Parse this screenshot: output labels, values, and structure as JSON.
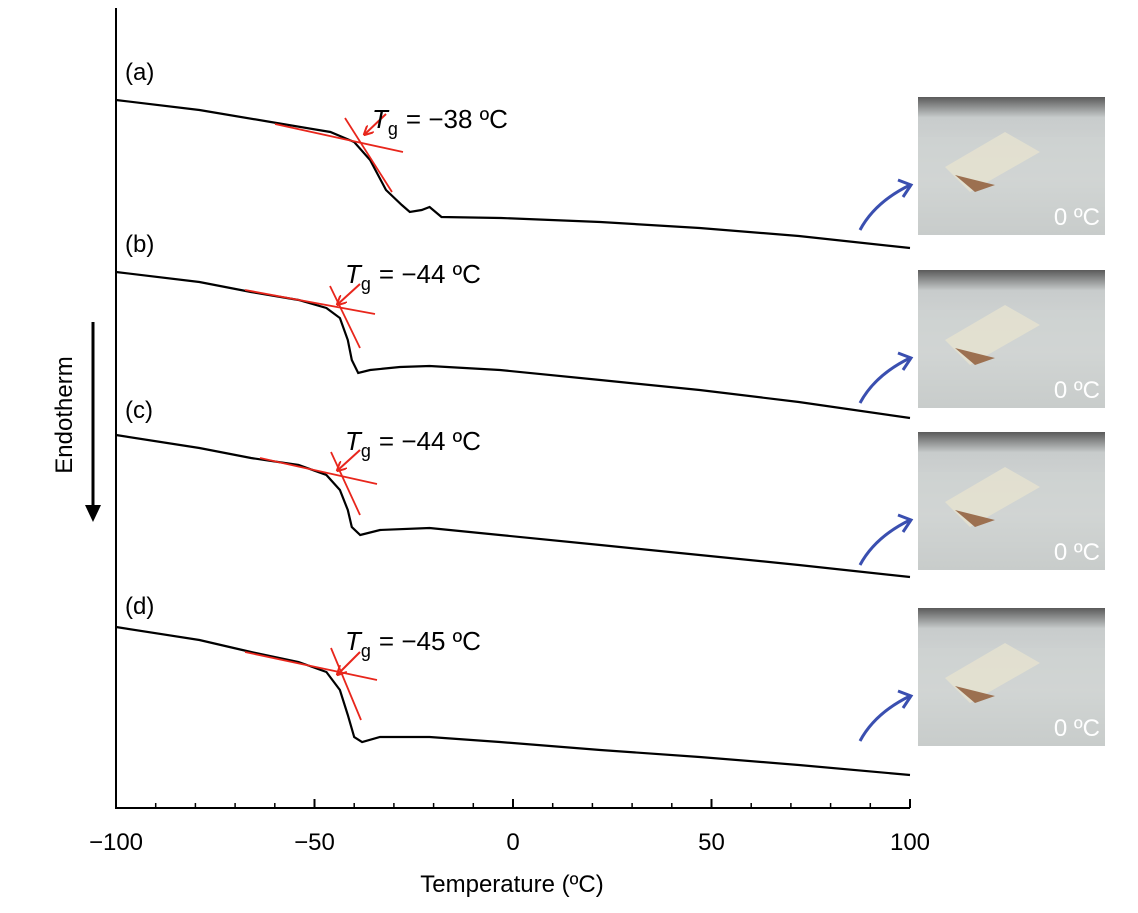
{
  "chart_data": {
    "type": "line",
    "x_label": "Temperature (ºC)",
    "y_label": "Endotherm",
    "xlim": [
      -100,
      100
    ],
    "xticks": [
      {
        "value": -100,
        "label": "−100"
      },
      {
        "value": -50,
        "label": "−50"
      },
      0,
      50,
      100
    ],
    "xticks_minor": [
      -90,
      -80,
      -70,
      -60,
      -40,
      -30,
      -20,
      -10,
      10,
      20,
      30,
      40,
      60,
      70,
      80,
      90
    ],
    "ylim": [
      0,
      800
    ],
    "series": [
      {
        "name": "(a)",
        "color": "#000000",
        "x": [
          -100,
          -79,
          -61,
          -46,
          -40,
          -36,
          -32,
          -28,
          -26,
          -23,
          -21,
          -18,
          -3,
          22,
          47,
          72,
          100
        ],
        "values": [
          708,
          698,
          686,
          676,
          666,
          648,
          618,
          603,
          596,
          598,
          601,
          591,
          590,
          586,
          580,
          572,
          560
        ],
        "annotation": {
          "symbol": "T",
          "subscript": "g",
          "text": "= −38 ºC"
        }
      },
      {
        "name": "(b)",
        "color": "#000000",
        "x": [
          -100,
          -79,
          -66,
          -54,
          -47,
          -43.6,
          -41.6,
          -40.6,
          -39,
          -36,
          -28.5,
          -21,
          -3.3,
          22,
          47,
          72,
          100
        ],
        "values": [
          536,
          526,
          516,
          508,
          500,
          490,
          468,
          448,
          435,
          438,
          441,
          442,
          438,
          428,
          418,
          406,
          390
        ],
        "annotation": {
          "symbol": "T",
          "subscript": "g",
          "text": "= −44 ºC"
        }
      },
      {
        "name": "(c)",
        "color": "#000000",
        "x": [
          -100,
          -79,
          -66,
          -54,
          -47,
          -43.6,
          -41.6,
          -40.6,
          -38.5,
          -33.5,
          -21,
          -3.3,
          22,
          47,
          72,
          100
        ],
        "values": [
          373,
          360,
          350,
          343,
          333,
          318,
          298,
          281,
          273,
          278,
          280,
          273,
          263,
          253,
          243,
          231
        ],
        "annotation": {
          "symbol": "T",
          "subscript": "g",
          "text": "= −44 ºC"
        }
      },
      {
        "name": "(d)",
        "color": "#000000",
        "x": [
          -100,
          -79,
          -66,
          -54,
          -47,
          -43.6,
          -41.6,
          -40,
          -38,
          -33.5,
          -21,
          -3.3,
          22,
          47,
          72,
          100
        ],
        "values": [
          181,
          168,
          156,
          146,
          136,
          118,
          93,
          71,
          66,
          71,
          71,
          66,
          58,
          51,
          43,
          33
        ],
        "annotation": {
          "symbol": "T",
          "subscript": "g",
          "text": "= −45 ºC"
        }
      }
    ],
    "insets": [
      {
        "label": "0 ºC"
      },
      {
        "label": "0 ºC"
      },
      {
        "label": "0 ºC"
      },
      {
        "label": "0 ºC"
      }
    ]
  }
}
